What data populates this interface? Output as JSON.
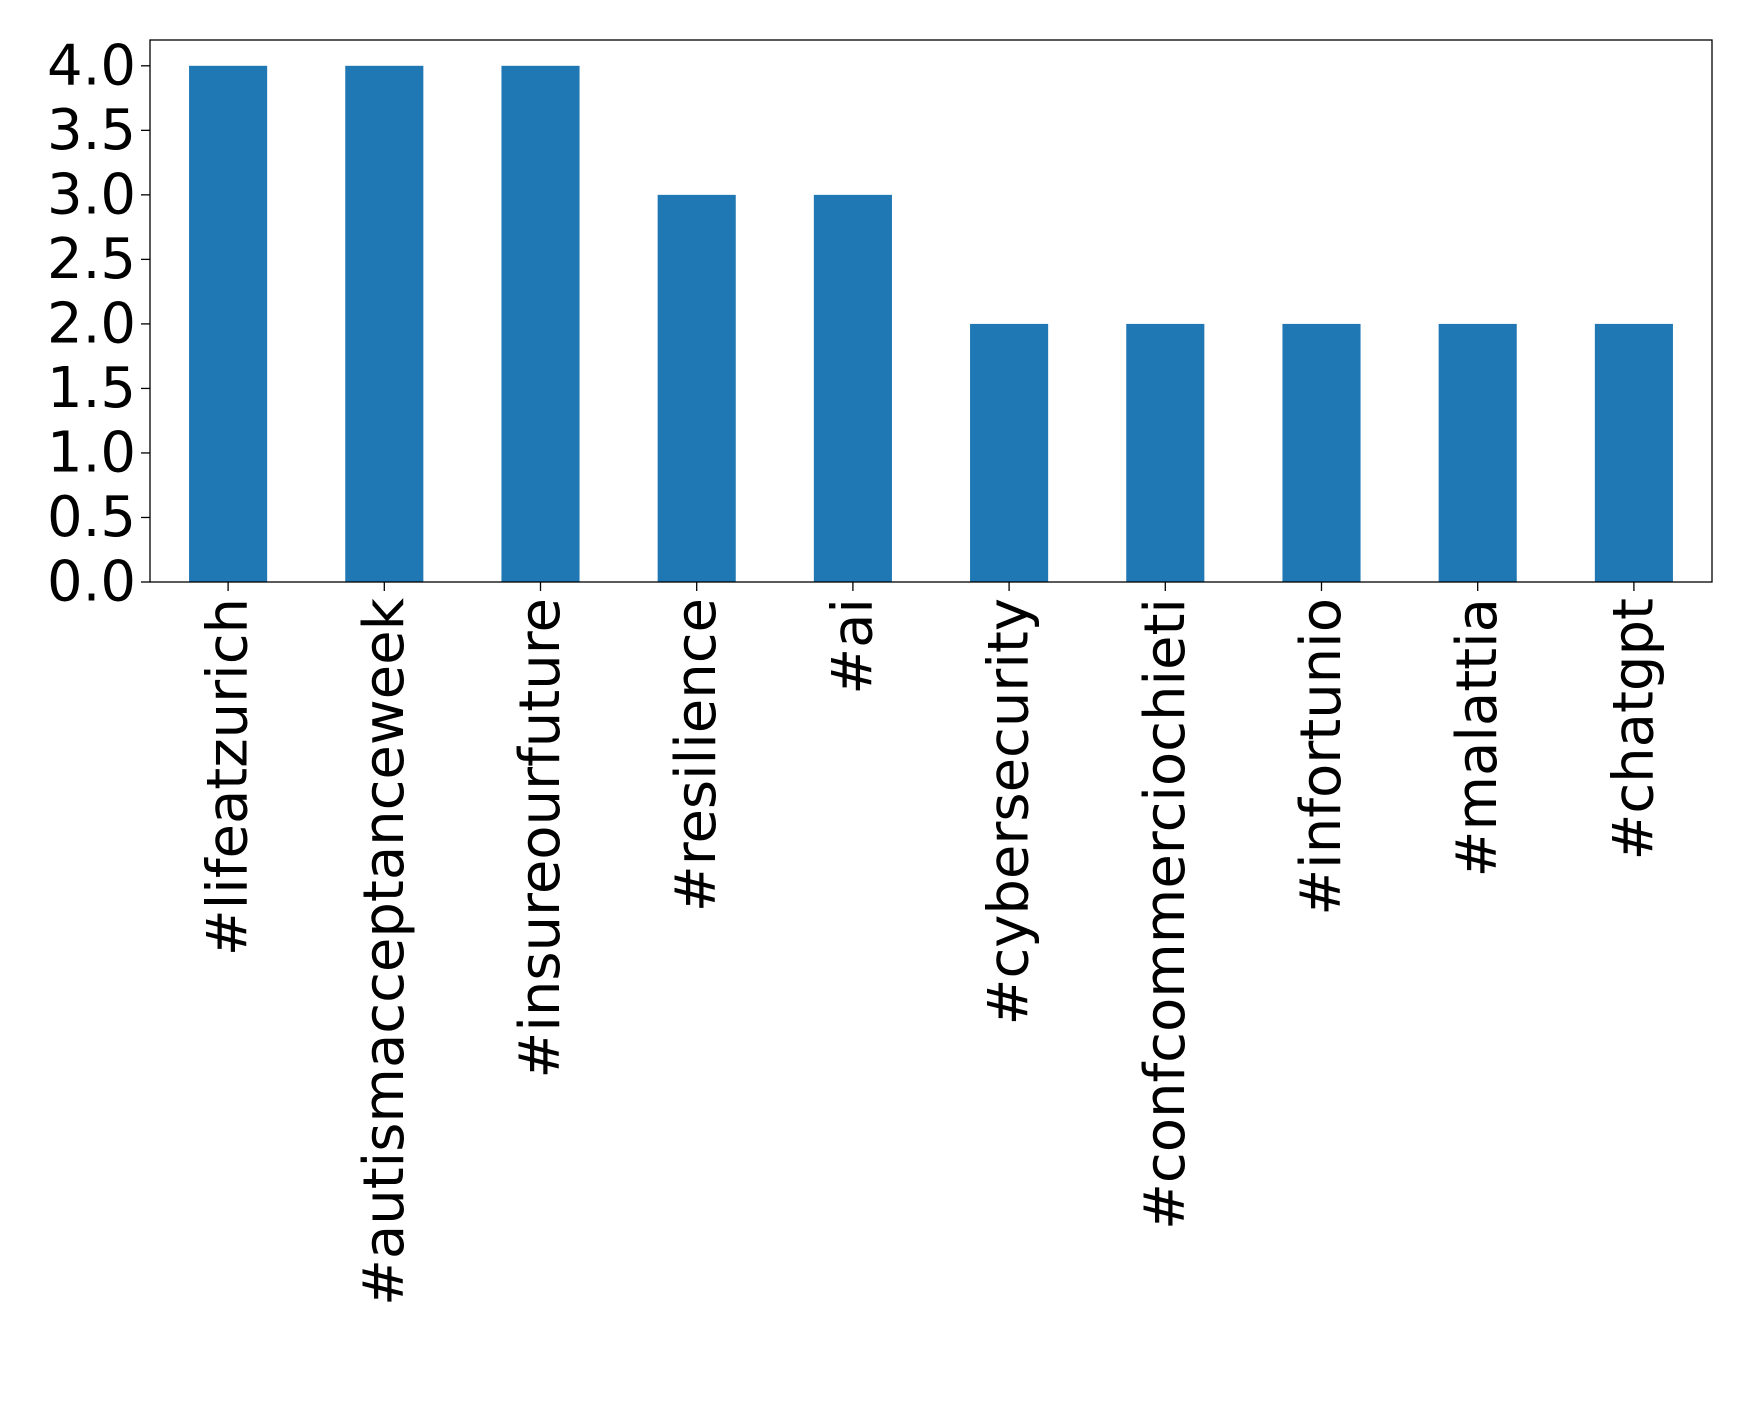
{
  "chart_data": {
    "type": "bar",
    "title": "",
    "xlabel": "",
    "ylabel": "",
    "categories": [
      "#lifeatzurich",
      "#autismacceptanceweek",
      "#insureourfuture",
      "#resilience",
      "#ai",
      "#cybersecurity",
      "#confcommerciochieti",
      "#infortunio",
      "#malattia",
      "#chatgpt"
    ],
    "values": [
      4,
      4,
      4,
      3,
      3,
      2,
      2,
      2,
      2,
      2
    ],
    "ylim": [
      0,
      4.2
    ],
    "yticks": [
      "0.0",
      "0.5",
      "1.0",
      "1.5",
      "2.0",
      "2.5",
      "3.0",
      "3.5",
      "4.0"
    ],
    "bar_color": "#1f77b4",
    "grid": false,
    "legend": "none",
    "xtick_rotation": "vertical"
  }
}
